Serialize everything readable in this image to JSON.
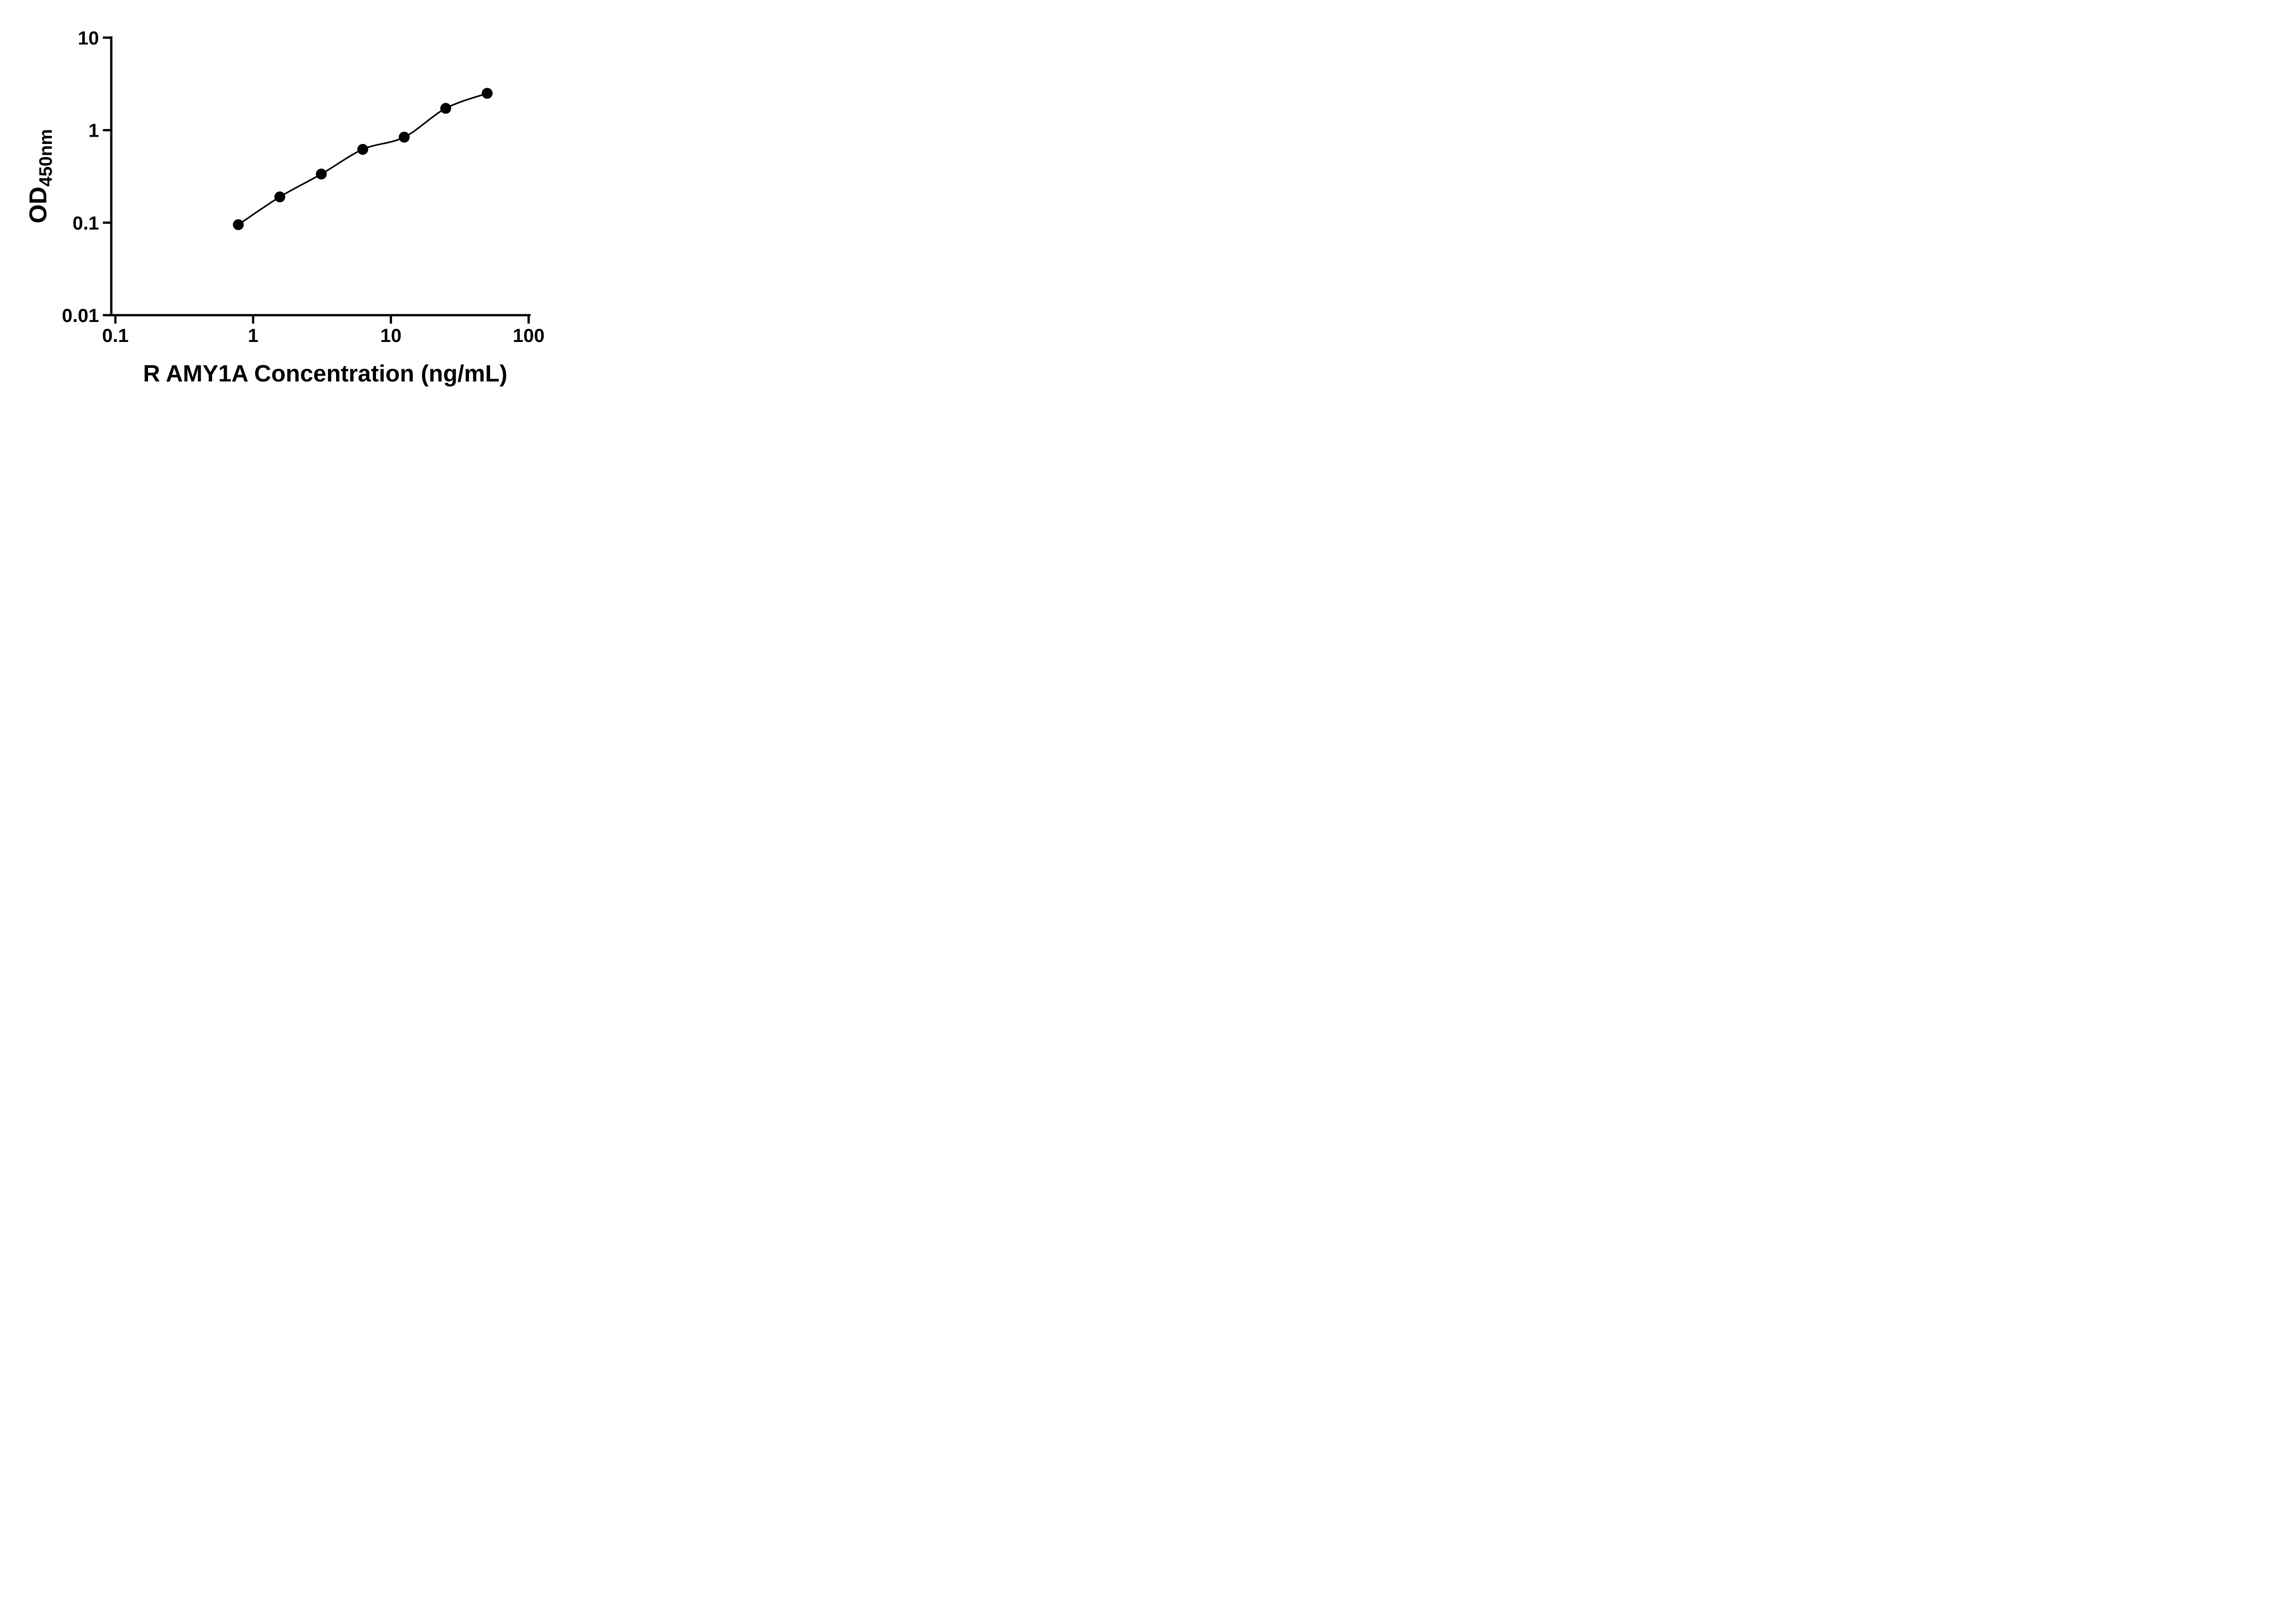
{
  "chart_data": {
    "type": "scatter",
    "title": "",
    "xlabel": "R AMY1A Concentration (ng/mL)",
    "ylabel": "OD450nm",
    "ylabel_main": "OD",
    "ylabel_sub": "450nm",
    "x_scale": "log10",
    "y_scale": "log10",
    "xlim": [
      0.1,
      100
    ],
    "ylim": [
      0.01,
      10
    ],
    "x_tick_labels": [
      "0.1",
      "1",
      "10",
      "100"
    ],
    "y_tick_labels": [
      "0.01",
      "0.1",
      "1",
      "10"
    ],
    "grid": false,
    "legend": "none",
    "marker_shape": "circle",
    "marker_color": "#000000",
    "line_color": "#000000",
    "x": [
      0.781,
      1.563,
      3.125,
      6.25,
      12.5,
      25,
      50
    ],
    "y": [
      0.095,
      0.19,
      0.335,
      0.62,
      0.84,
      1.72,
      2.5
    ]
  }
}
